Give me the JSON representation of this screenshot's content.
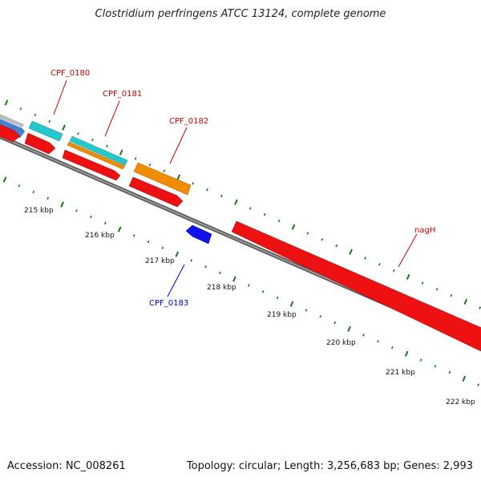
{
  "title": "Clostridium perfringens ATCC 13124, complete genome",
  "footer": {
    "accession": "Accession: NC_008261",
    "summary": "Topology: circular; Length: 3,256,683 bp; Genes: 2,993"
  },
  "scale_labels": [
    "215 kbp",
    "216 kbp",
    "217 kbp",
    "218 kbp",
    "219 kbp",
    "220 kbp",
    "221 kbp",
    "222 kbp"
  ],
  "gene_labels": [
    {
      "text": "CPF_0180",
      "color": "#cc0000"
    },
    {
      "text": "CPF_0181",
      "color": "#cc0000"
    },
    {
      "text": "CPF_0182",
      "color": "#cc0000"
    },
    {
      "text": "nagH",
      "color": "#cc0000"
    },
    {
      "text": "CPF_0183",
      "color": "#0000cc"
    }
  ],
  "colors": {
    "cds_red": "#ee1111",
    "cds_cyan": "#22c8cc",
    "cds_orange": "#f08c00",
    "cds_blue": "#1111ee",
    "backbone": "#808080",
    "ticks": "#117711"
  }
}
